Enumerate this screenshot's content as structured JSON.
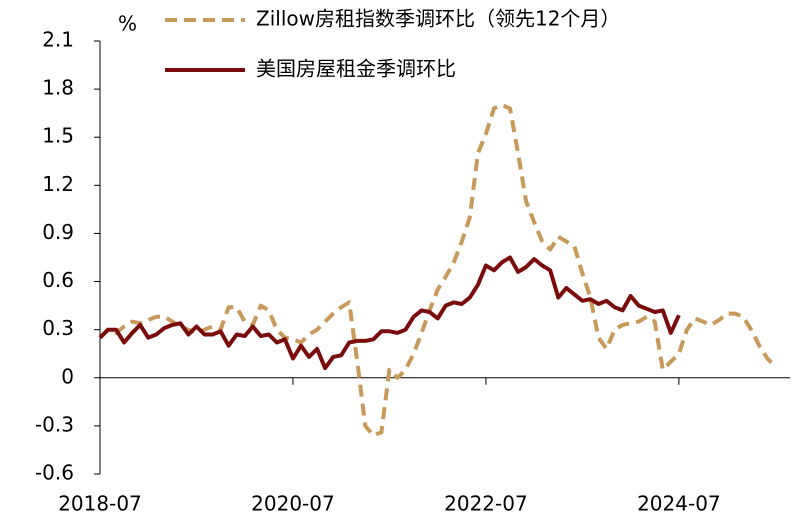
{
  "chart_data": {
    "type": "line",
    "y_unit": "%",
    "categories": [
      "2018-07",
      null,
      null,
      null,
      null,
      null,
      null,
      null,
      null,
      null,
      null,
      null,
      null,
      null,
      null,
      null,
      null,
      null,
      null,
      null,
      null,
      null,
      null,
      null,
      "2020-07",
      null,
      null,
      null,
      null,
      null,
      null,
      null,
      null,
      null,
      null,
      null,
      null,
      null,
      null,
      null,
      null,
      null,
      null,
      null,
      null,
      null,
      null,
      null,
      "2022-07",
      null,
      null,
      null,
      null,
      null,
      null,
      null,
      null,
      null,
      null,
      null,
      null,
      null,
      null,
      null,
      null,
      null,
      null,
      null,
      null,
      null,
      null,
      null,
      "2024-07",
      null,
      null,
      null,
      null,
      null,
      null,
      null,
      null,
      null,
      null,
      null,
      null
    ],
    "series": [
      {
        "name": "Zillow房租指数季调环比（领先12个月）",
        "color": "#c8995a",
        "dash": true,
        "values": [
          0.25,
          0.3,
          0.28,
          0.32,
          0.35,
          0.34,
          0.36,
          0.38,
          0.38,
          0.35,
          0.32,
          0.3,
          0.28,
          0.3,
          0.32,
          0.3,
          0.44,
          0.44,
          0.35,
          0.33,
          0.45,
          0.42,
          0.3,
          0.25,
          0.24,
          0.22,
          0.27,
          0.3,
          0.35,
          0.4,
          0.44,
          0.47,
          0.1,
          -0.3,
          -0.36,
          -0.34,
          0.05,
          0.0,
          0.05,
          0.15,
          0.28,
          0.42,
          0.55,
          0.63,
          0.72,
          0.85,
          1.0,
          1.4,
          1.52,
          1.68,
          1.7,
          1.68,
          1.4,
          1.1,
          0.97,
          0.85,
          0.8,
          0.88,
          0.85,
          0.82,
          0.65,
          0.5,
          0.25,
          0.18,
          0.3,
          0.33,
          0.34,
          0.35,
          0.38,
          0.35,
          0.05,
          0.1,
          0.15,
          0.3,
          0.37,
          0.35,
          0.33,
          0.36,
          0.4,
          0.4,
          0.38,
          0.3,
          0.2,
          0.12,
          0.07
        ]
      },
      {
        "name": "美国房屋租金季调环比",
        "color": "#7b0c0c",
        "dash": false,
        "values": [
          0.25,
          0.3,
          0.3,
          0.22,
          0.28,
          0.33,
          0.25,
          0.27,
          0.31,
          0.33,
          0.34,
          0.27,
          0.32,
          0.27,
          0.27,
          0.29,
          0.2,
          0.27,
          0.26,
          0.32,
          0.26,
          0.27,
          0.22,
          0.24,
          0.12,
          0.2,
          0.13,
          0.18,
          0.06,
          0.13,
          0.14,
          0.22,
          0.23,
          0.23,
          0.24,
          0.29,
          0.29,
          0.28,
          0.3,
          0.38,
          0.42,
          0.41,
          0.37,
          0.45,
          0.47,
          0.46,
          0.5,
          0.58,
          0.7,
          0.67,
          0.72,
          0.75,
          0.66,
          0.69,
          0.74,
          0.7,
          0.67,
          0.5,
          0.56,
          0.52,
          0.48,
          0.49,
          0.46,
          0.48,
          0.44,
          0.42,
          0.51,
          0.45,
          0.43,
          0.41,
          0.42,
          0.28,
          0.39,
          null,
          null,
          null,
          null,
          null,
          null,
          null,
          null,
          null,
          null,
          null,
          null
        ]
      }
    ],
    "ylim": [
      -0.6,
      2.1
    ],
    "yticks": [
      -0.6,
      -0.3,
      0,
      0.3,
      0.6,
      0.9,
      1.2,
      1.5,
      1.8,
      2.1
    ],
    "legend": "top"
  }
}
